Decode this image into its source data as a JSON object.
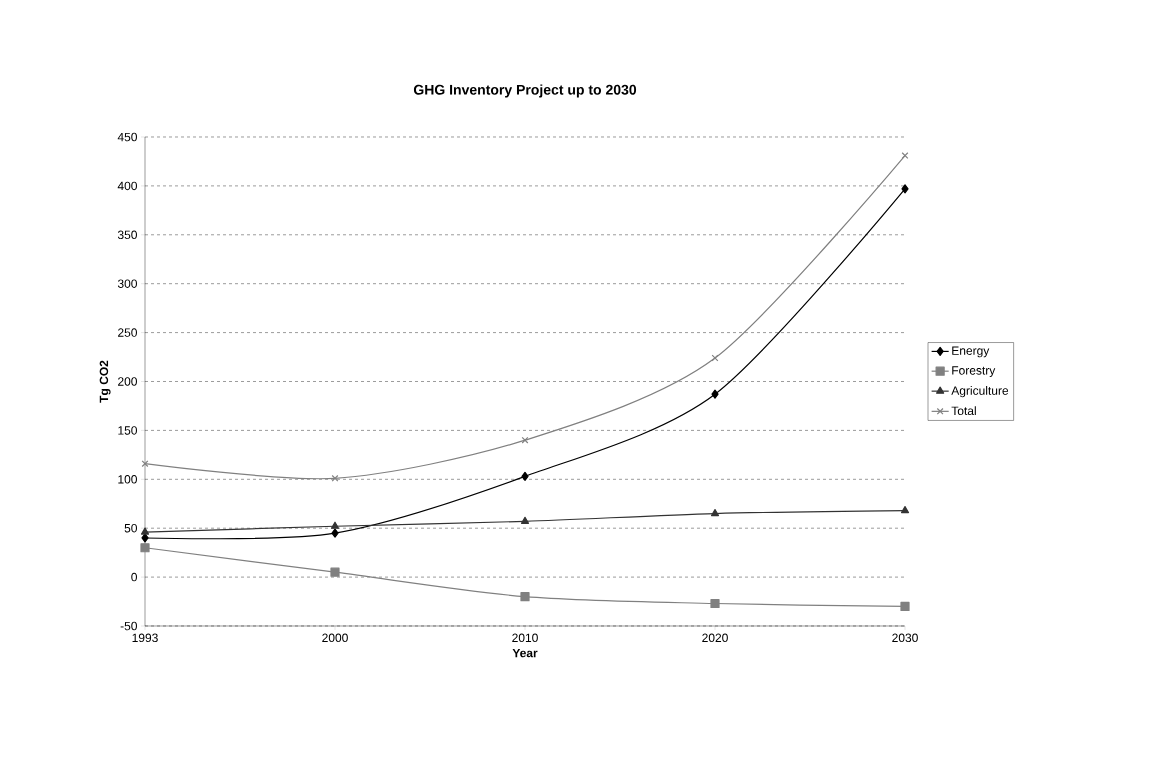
{
  "chart_data": {
    "type": "line",
    "title": "GHG Inventory Project up to 2030",
    "xlabel": "Year",
    "ylabel": "Tg CO2",
    "categories": [
      "1993",
      "2000",
      "2010",
      "2020",
      "2030"
    ],
    "series": [
      {
        "name": "Energy",
        "color": "#000000",
        "marker": "diamond",
        "values": [
          40,
          45,
          103,
          187,
          397
        ]
      },
      {
        "name": "Forestry",
        "color": "#808080",
        "marker": "square",
        "values": [
          30,
          5,
          -20,
          -27,
          -30
        ]
      },
      {
        "name": "Agriculture",
        "color": "#333333",
        "marker": "triangle",
        "values": [
          46,
          52,
          57,
          65,
          68
        ]
      },
      {
        "name": "Total",
        "color": "#808080",
        "marker": "cross",
        "values": [
          116,
          101,
          140,
          224,
          431
        ]
      }
    ],
    "ylim": [
      -50,
      450
    ],
    "yticks": [
      -50,
      0,
      50,
      100,
      150,
      200,
      250,
      300,
      350,
      400,
      450
    ],
    "grid": "y",
    "legend": "right",
    "line_style": "solid"
  }
}
